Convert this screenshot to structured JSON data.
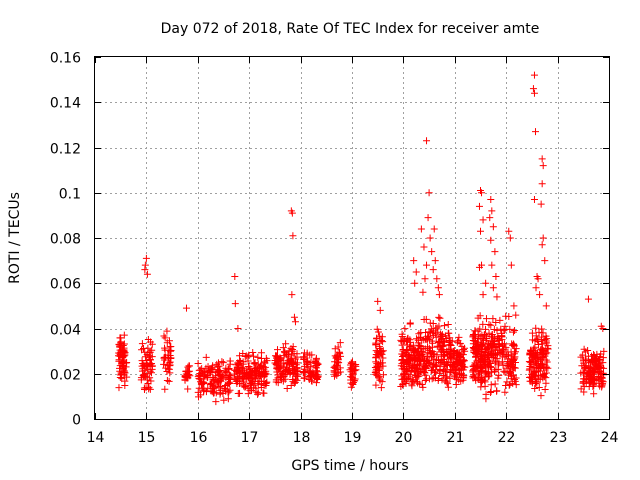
{
  "chart_data": {
    "type": "scatter",
    "title": "Day 072 of 2018, Rate Of TEC Index for receiver amte",
    "xlabel": "GPS time / hours",
    "ylabel": "ROTI / TECUs",
    "xlim": [
      14,
      24
    ],
    "ylim": [
      0,
      0.16
    ],
    "xticks": [
      "14",
      "15",
      "16",
      "17",
      "18",
      "19",
      "20",
      "21",
      "22",
      "23",
      "24"
    ],
    "yticks": [
      "0",
      "0.02",
      "0.04",
      "0.06",
      "0.08",
      "0.1",
      "0.12",
      "0.14",
      "0.16"
    ],
    "grid": true,
    "marker": "plus",
    "color": "#ff0000",
    "clusters": [
      {
        "x_start": 14.45,
        "x_end": 14.62,
        "y_min": 0.01,
        "y_max": 0.041,
        "n": 70
      },
      {
        "x_start": 14.9,
        "x_end": 15.12,
        "y_min": 0.008,
        "y_max": 0.04,
        "n": 60
      },
      {
        "x_start": 15.32,
        "x_end": 15.48,
        "y_min": 0.01,
        "y_max": 0.042,
        "n": 40
      },
      {
        "x_start": 15.75,
        "x_end": 15.85,
        "y_min": 0.012,
        "y_max": 0.028,
        "n": 25
      },
      {
        "x_start": 16.0,
        "x_end": 16.65,
        "y_min": 0.006,
        "y_max": 0.03,
        "n": 140
      },
      {
        "x_start": 16.7,
        "x_end": 17.35,
        "y_min": 0.008,
        "y_max": 0.032,
        "n": 170
      },
      {
        "x_start": 17.5,
        "x_end": 17.95,
        "y_min": 0.01,
        "y_max": 0.035,
        "n": 120
      },
      {
        "x_start": 18.05,
        "x_end": 18.35,
        "y_min": 0.01,
        "y_max": 0.032,
        "n": 70
      },
      {
        "x_start": 18.65,
        "x_end": 18.78,
        "y_min": 0.012,
        "y_max": 0.038,
        "n": 35
      },
      {
        "x_start": 18.95,
        "x_end": 19.08,
        "y_min": 0.01,
        "y_max": 0.03,
        "n": 30
      },
      {
        "x_start": 19.45,
        "x_end": 19.62,
        "y_min": 0.008,
        "y_max": 0.045,
        "n": 60
      },
      {
        "x_start": 19.95,
        "x_end": 20.3,
        "y_min": 0.006,
        "y_max": 0.045,
        "n": 140
      },
      {
        "x_start": 20.3,
        "x_end": 20.95,
        "y_min": 0.008,
        "y_max": 0.05,
        "n": 220
      },
      {
        "x_start": 20.95,
        "x_end": 21.2,
        "y_min": 0.01,
        "y_max": 0.04,
        "n": 80
      },
      {
        "x_start": 21.35,
        "x_end": 21.65,
        "y_min": 0.006,
        "y_max": 0.05,
        "n": 150
      },
      {
        "x_start": 21.65,
        "x_end": 22.2,
        "y_min": 0.006,
        "y_max": 0.05,
        "n": 170
      },
      {
        "x_start": 22.45,
        "x_end": 22.82,
        "y_min": 0.008,
        "y_max": 0.045,
        "n": 140
      },
      {
        "x_start": 23.45,
        "x_end": 23.9,
        "y_min": 0.008,
        "y_max": 0.035,
        "n": 140
      }
    ],
    "outliers": [
      {
        "x": 14.97,
        "y": 0.066
      },
      {
        "x": 15.0,
        "y": 0.071
      },
      {
        "x": 15.02,
        "y": 0.064
      },
      {
        "x": 14.98,
        "y": 0.068
      },
      {
        "x": 15.78,
        "y": 0.049
      },
      {
        "x": 16.72,
        "y": 0.063
      },
      {
        "x": 16.73,
        "y": 0.051
      },
      {
        "x": 16.78,
        "y": 0.04
      },
      {
        "x": 17.82,
        "y": 0.092
      },
      {
        "x": 17.84,
        "y": 0.091
      },
      {
        "x": 17.85,
        "y": 0.081
      },
      {
        "x": 17.83,
        "y": 0.055
      },
      {
        "x": 17.88,
        "y": 0.045
      },
      {
        "x": 17.9,
        "y": 0.043
      },
      {
        "x": 19.5,
        "y": 0.052
      },
      {
        "x": 19.55,
        "y": 0.048
      },
      {
        "x": 20.2,
        "y": 0.07
      },
      {
        "x": 20.25,
        "y": 0.065
      },
      {
        "x": 20.22,
        "y": 0.06
      },
      {
        "x": 20.35,
        "y": 0.084
      },
      {
        "x": 20.4,
        "y": 0.076
      },
      {
        "x": 20.45,
        "y": 0.123
      },
      {
        "x": 20.5,
        "y": 0.1
      },
      {
        "x": 20.48,
        "y": 0.089
      },
      {
        "x": 20.52,
        "y": 0.08
      },
      {
        "x": 20.55,
        "y": 0.074
      },
      {
        "x": 20.6,
        "y": 0.084
      },
      {
        "x": 20.62,
        "y": 0.07
      },
      {
        "x": 20.58,
        "y": 0.066
      },
      {
        "x": 20.65,
        "y": 0.062
      },
      {
        "x": 20.68,
        "y": 0.058
      },
      {
        "x": 20.7,
        "y": 0.055
      },
      {
        "x": 20.45,
        "y": 0.068
      },
      {
        "x": 20.42,
        "y": 0.062
      },
      {
        "x": 20.38,
        "y": 0.056
      },
      {
        "x": 21.5,
        "y": 0.101
      },
      {
        "x": 21.52,
        "y": 0.1
      },
      {
        "x": 21.48,
        "y": 0.094
      },
      {
        "x": 21.55,
        "y": 0.088
      },
      {
        "x": 21.5,
        "y": 0.083
      },
      {
        "x": 21.52,
        "y": 0.068
      },
      {
        "x": 21.48,
        "y": 0.067
      },
      {
        "x": 21.6,
        "y": 0.06
      },
      {
        "x": 21.55,
        "y": 0.055
      },
      {
        "x": 21.7,
        "y": 0.097
      },
      {
        "x": 21.72,
        "y": 0.092
      },
      {
        "x": 21.68,
        "y": 0.089
      },
      {
        "x": 21.75,
        "y": 0.085
      },
      {
        "x": 21.7,
        "y": 0.079
      },
      {
        "x": 21.78,
        "y": 0.074
      },
      {
        "x": 21.72,
        "y": 0.068
      },
      {
        "x": 21.8,
        "y": 0.063
      },
      {
        "x": 21.75,
        "y": 0.058
      },
      {
        "x": 21.82,
        "y": 0.054
      },
      {
        "x": 22.05,
        "y": 0.083
      },
      {
        "x": 22.08,
        "y": 0.08
      },
      {
        "x": 22.1,
        "y": 0.068
      },
      {
        "x": 22.15,
        "y": 0.05
      },
      {
        "x": 22.55,
        "y": 0.152
      },
      {
        "x": 22.53,
        "y": 0.146
      },
      {
        "x": 22.55,
        "y": 0.144
      },
      {
        "x": 22.57,
        "y": 0.127
      },
      {
        "x": 22.55,
        "y": 0.097
      },
      {
        "x": 22.6,
        "y": 0.063
      },
      {
        "x": 22.62,
        "y": 0.062
      },
      {
        "x": 22.58,
        "y": 0.058
      },
      {
        "x": 22.65,
        "y": 0.055
      },
      {
        "x": 22.7,
        "y": 0.115
      },
      {
        "x": 22.72,
        "y": 0.112
      },
      {
        "x": 22.7,
        "y": 0.104
      },
      {
        "x": 22.68,
        "y": 0.095
      },
      {
        "x": 22.72,
        "y": 0.08
      },
      {
        "x": 22.7,
        "y": 0.077
      },
      {
        "x": 22.75,
        "y": 0.07
      },
      {
        "x": 22.78,
        "y": 0.05
      },
      {
        "x": 23.6,
        "y": 0.053
      },
      {
        "x": 23.85,
        "y": 0.041
      },
      {
        "x": 23.88,
        "y": 0.04
      }
    ]
  }
}
